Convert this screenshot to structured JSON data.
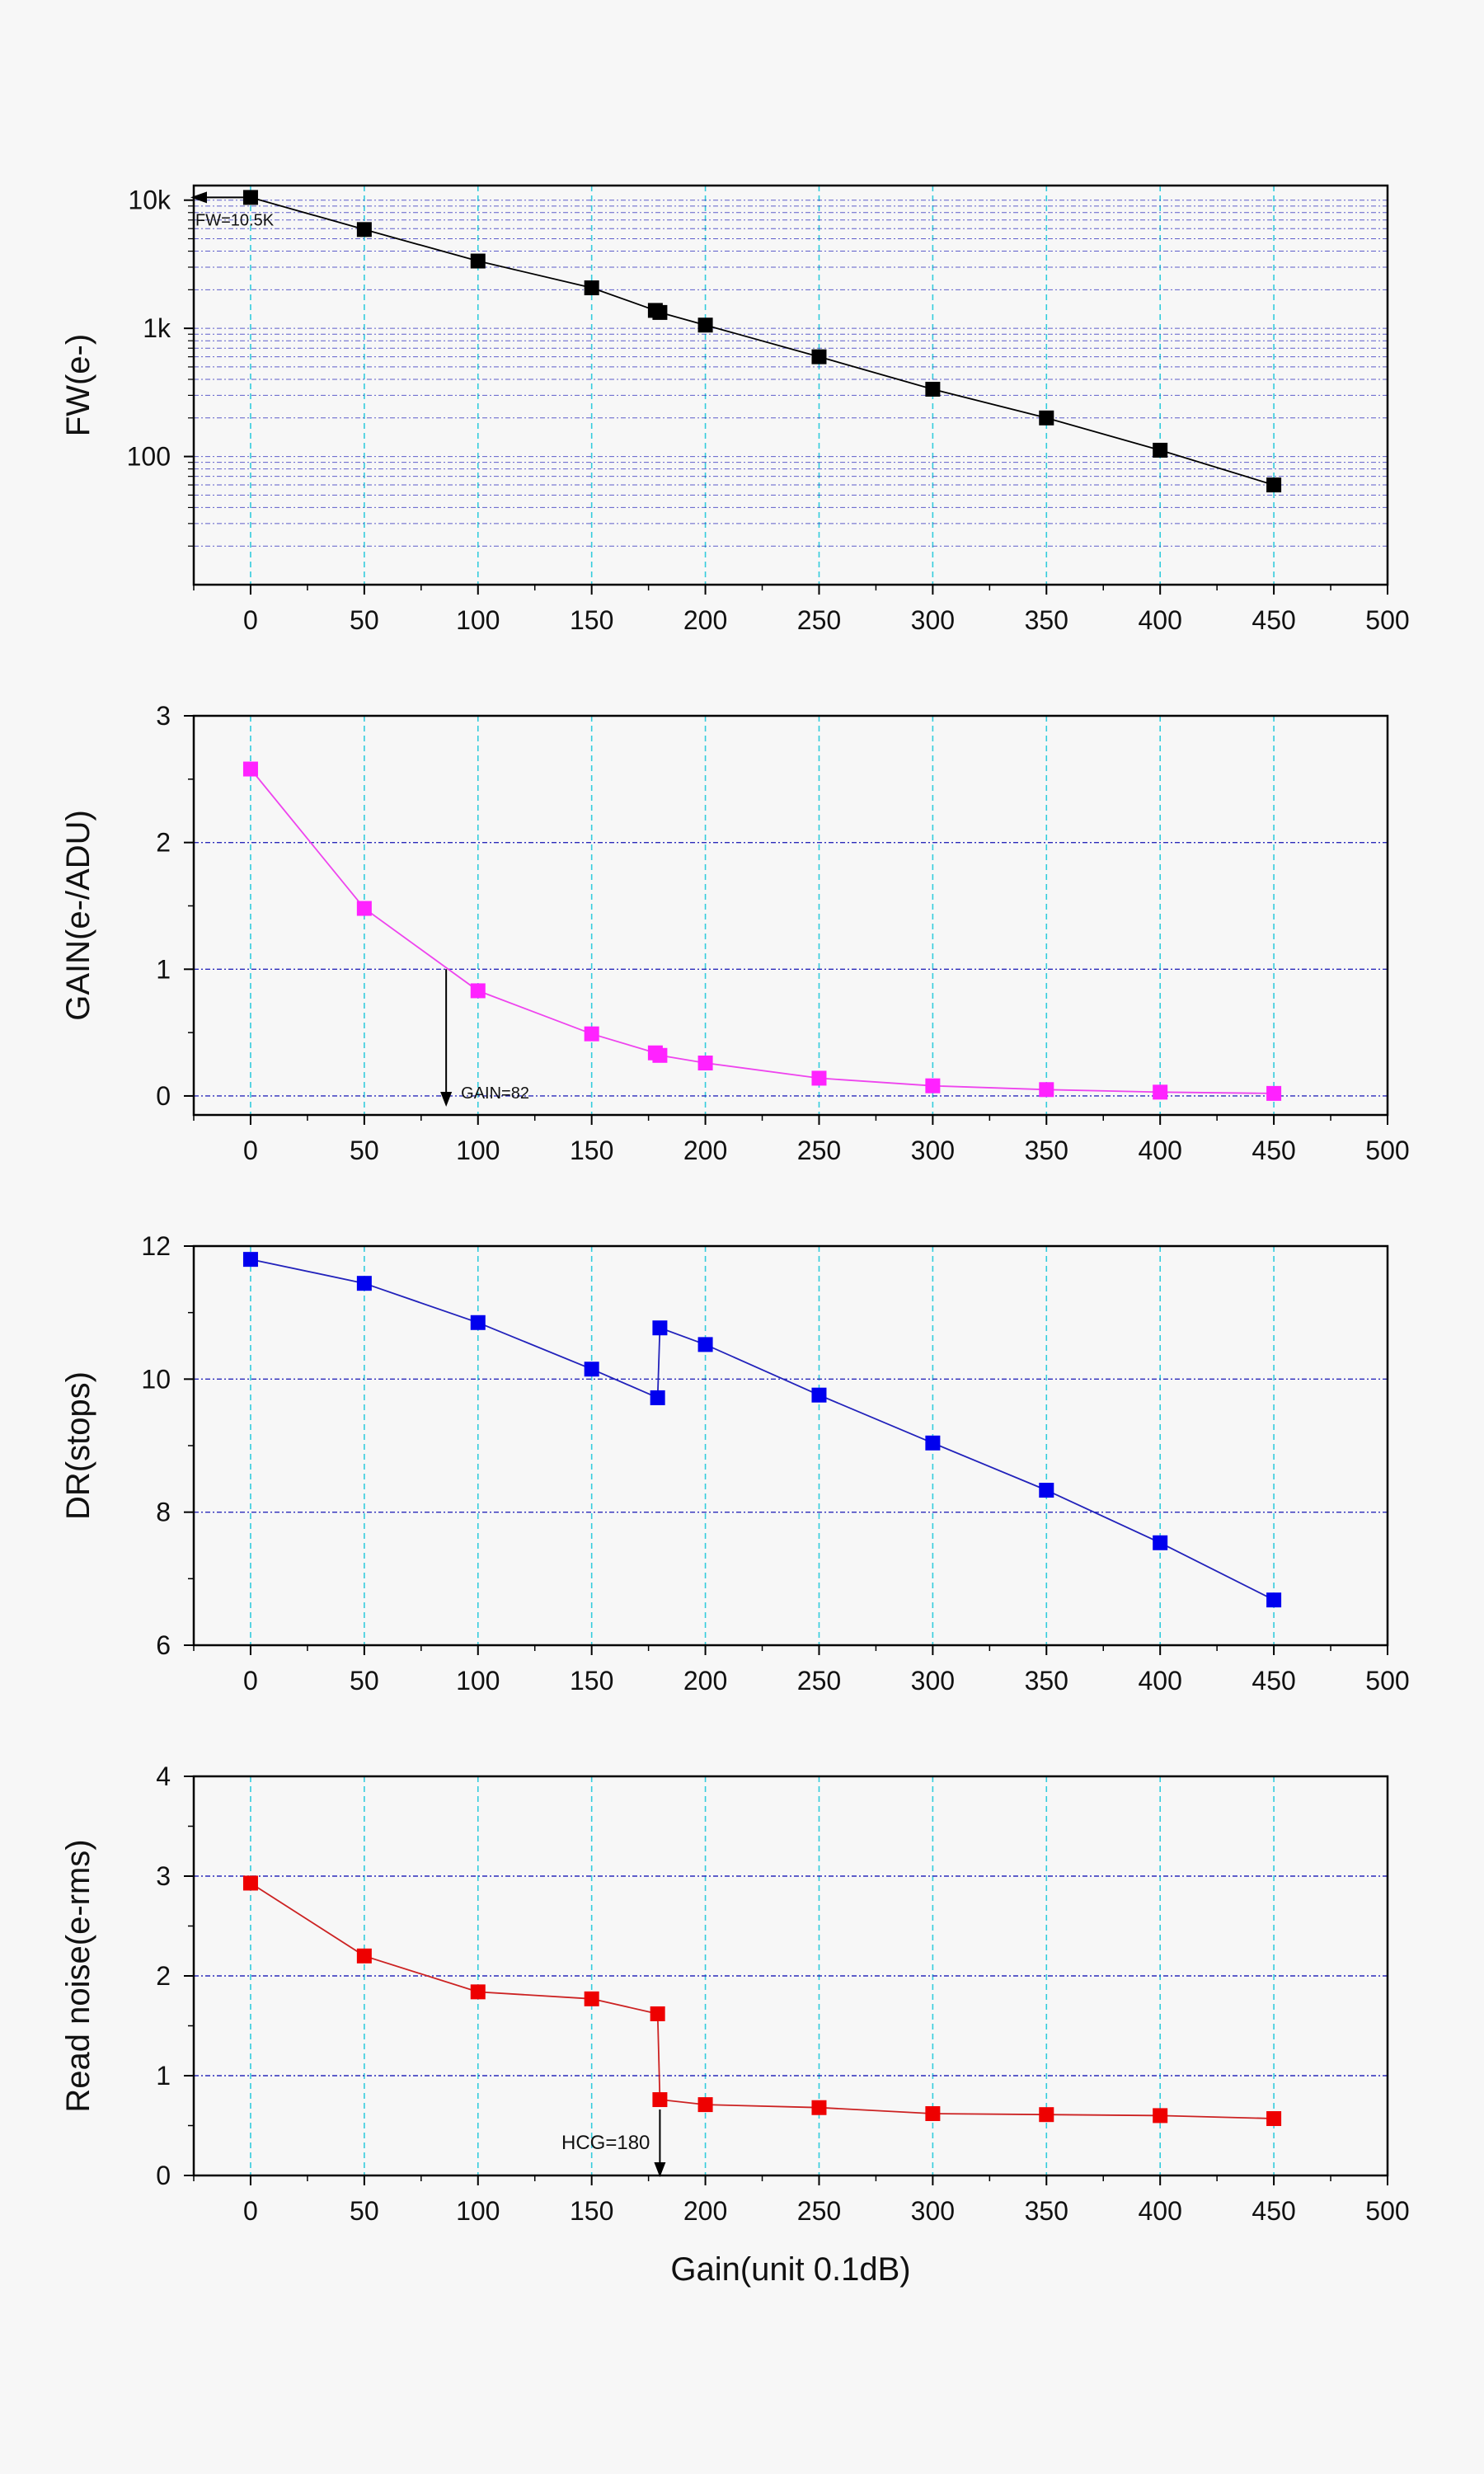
{
  "chart_data": [
    {
      "id": "fw",
      "type": "line",
      "yscale": "log",
      "ylabel": "FW(e-)",
      "xlabel": "",
      "xlim": [
        -25,
        500
      ],
      "ylim": [
        10,
        13000
      ],
      "xticks": [
        0,
        50,
        100,
        150,
        200,
        250,
        300,
        350,
        400,
        450,
        500
      ],
      "yticks": [
        100,
        1000,
        10000
      ],
      "ytick_labels": [
        "100",
        "1k",
        "10k"
      ],
      "colors": {
        "series": "#000000",
        "marker": "#000000",
        "vgrid": "#33ccdd",
        "hgrid": "#2b2bbb"
      },
      "series": [
        {
          "name": "FW",
          "x": [
            0,
            50,
            100,
            150,
            178,
            180,
            200,
            250,
            300,
            350,
            400,
            450
          ],
          "y": [
            10500,
            5900,
            3350,
            2070,
            1380,
            1330,
            1060,
            600,
            335,
            200,
            112,
            60
          ]
        }
      ],
      "annotations": [
        {
          "text": "FW=10.5K",
          "x": 0,
          "y": 10500,
          "arrow": "left"
        }
      ]
    },
    {
      "id": "gain",
      "type": "line",
      "yscale": "linear",
      "ylabel": "GAIN(e-/ADU)",
      "xlabel": "",
      "xlim": [
        -25,
        500
      ],
      "ylim": [
        -0.15,
        3
      ],
      "xticks": [
        0,
        50,
        100,
        150,
        200,
        250,
        300,
        350,
        400,
        450,
        500
      ],
      "yticks": [
        0,
        1,
        2,
        3
      ],
      "ytick_labels": [
        "0",
        "1",
        "2",
        "3"
      ],
      "colors": {
        "series": "#ee44ee",
        "marker": "#ff22ff",
        "vgrid": "#33ccdd",
        "hgrid": "#2b2bbb"
      },
      "series": [
        {
          "name": "GAIN",
          "x": [
            0,
            50,
            100,
            150,
            178,
            180,
            200,
            250,
            300,
            350,
            400,
            450
          ],
          "y": [
            2.58,
            1.48,
            0.83,
            0.49,
            0.34,
            0.32,
            0.26,
            0.14,
            0.08,
            0.05,
            0.03,
            0.02
          ]
        }
      ],
      "annotations": [
        {
          "text": "GAIN=82",
          "x": 86,
          "y": 1.0,
          "arrow": "down"
        }
      ]
    },
    {
      "id": "dr",
      "type": "line",
      "yscale": "linear",
      "ylabel": "DR(stops)",
      "xlabel": "",
      "xlim": [
        -25,
        500
      ],
      "ylim": [
        6,
        12
      ],
      "xticks": [
        0,
        50,
        100,
        150,
        200,
        250,
        300,
        350,
        400,
        450,
        500
      ],
      "yticks": [
        6,
        8,
        10,
        12
      ],
      "ytick_labels": [
        "6",
        "8",
        "10",
        "12"
      ],
      "colors": {
        "series": "#2222bb",
        "marker": "#0000ee",
        "vgrid": "#33ccdd",
        "hgrid": "#2b2bbb"
      },
      "series": [
        {
          "name": "DR",
          "x": [
            0,
            50,
            100,
            150,
            179,
            180,
            200,
            250,
            300,
            350,
            400,
            450
          ],
          "y": [
            11.8,
            11.44,
            10.85,
            10.15,
            9.72,
            10.77,
            10.52,
            9.76,
            9.04,
            8.33,
            7.54,
            6.68
          ]
        }
      ],
      "annotations": []
    },
    {
      "id": "rn",
      "type": "line",
      "yscale": "linear",
      "ylabel": "Read noise(e-rms)",
      "xlabel": "Gain(unit 0.1dB)",
      "xlim": [
        -25,
        500
      ],
      "ylim": [
        0,
        4
      ],
      "xticks": [
        0,
        50,
        100,
        150,
        200,
        250,
        300,
        350,
        400,
        450,
        500
      ],
      "yticks": [
        0,
        1,
        2,
        3,
        4
      ],
      "ytick_labels": [
        "0",
        "1",
        "2",
        "3",
        "4"
      ],
      "colors": {
        "series": "#cc2222",
        "marker": "#ee0000",
        "vgrid": "#33ccdd",
        "hgrid": "#2b2bbb"
      },
      "series": [
        {
          "name": "Read noise",
          "x": [
            0,
            50,
            100,
            150,
            179,
            180,
            200,
            250,
            300,
            350,
            400,
            450
          ],
          "y": [
            2.93,
            2.2,
            1.84,
            1.77,
            1.62,
            0.76,
            0.71,
            0.68,
            0.62,
            0.61,
            0.6,
            0.57
          ]
        }
      ],
      "annotations": [
        {
          "text": "HCG=180",
          "x": 180,
          "y": 0.76,
          "arrow": "down"
        }
      ]
    }
  ]
}
